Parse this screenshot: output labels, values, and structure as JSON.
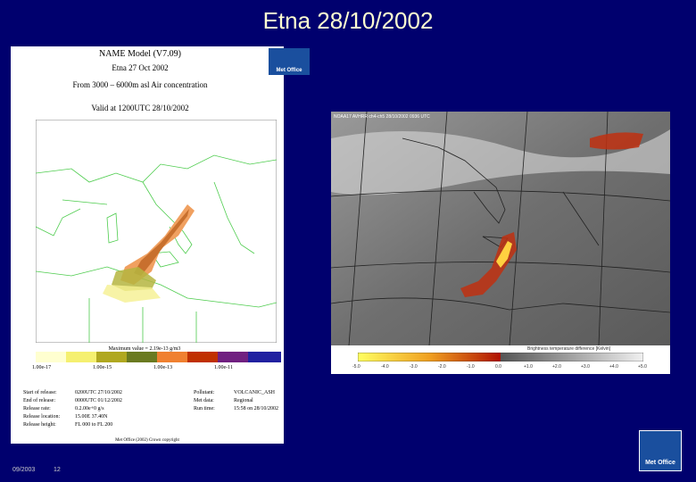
{
  "header": {
    "title": "Etna 28/10/2002"
  },
  "left_panel": {
    "title": "NAME Model (V7.09)",
    "subtitle": "Etna 27 Oct 2002",
    "description": "From 3000 – 6000m asl Air concentration",
    "valid": "Valid at 1200UTC 28/10/2002",
    "logo": "Met Office",
    "max_value": "Maximum value = 2.19e-13 g/m3",
    "legend": [
      "1.00e-17",
      "1.00e-15",
      "1.00e-13",
      "1.00e-11"
    ],
    "info_left": [
      [
        "Start of release:",
        "0200UTC 27/10/2002"
      ],
      [
        "End of release:",
        "0000UTC 01/12/2002"
      ],
      [
        "Release rate:",
        "0.2.00e+0 g/s"
      ],
      [
        "Release location:",
        "15.00E 37.40N"
      ],
      [
        "Release height:",
        "FL 000 to FL 200"
      ]
    ],
    "info_right": [
      [
        "Pollutant:",
        "VOLCANIC_ASH"
      ],
      [
        "Met data:",
        "Regional"
      ],
      [
        "Run time:",
        "15:58 on 28/10/2002"
      ]
    ],
    "copyright": "Met Office (2002) Crown copyright"
  },
  "right_panel": {
    "title": "NOAA17 AVHRR ch4-ch5 28/10/2002 0936 UTC",
    "scale_title": "Brightness temperature difference [Kelvin]",
    "scale": [
      "-5.0",
      "-4.0",
      "-3.0",
      "-2.0",
      "-1.0",
      "0.0",
      "+1.0",
      "+2.0",
      "+3.0",
      "+4.0",
      "+5.0"
    ]
  },
  "footer": {
    "date": "09/2003",
    "page": "12",
    "logo": "Met Office"
  }
}
